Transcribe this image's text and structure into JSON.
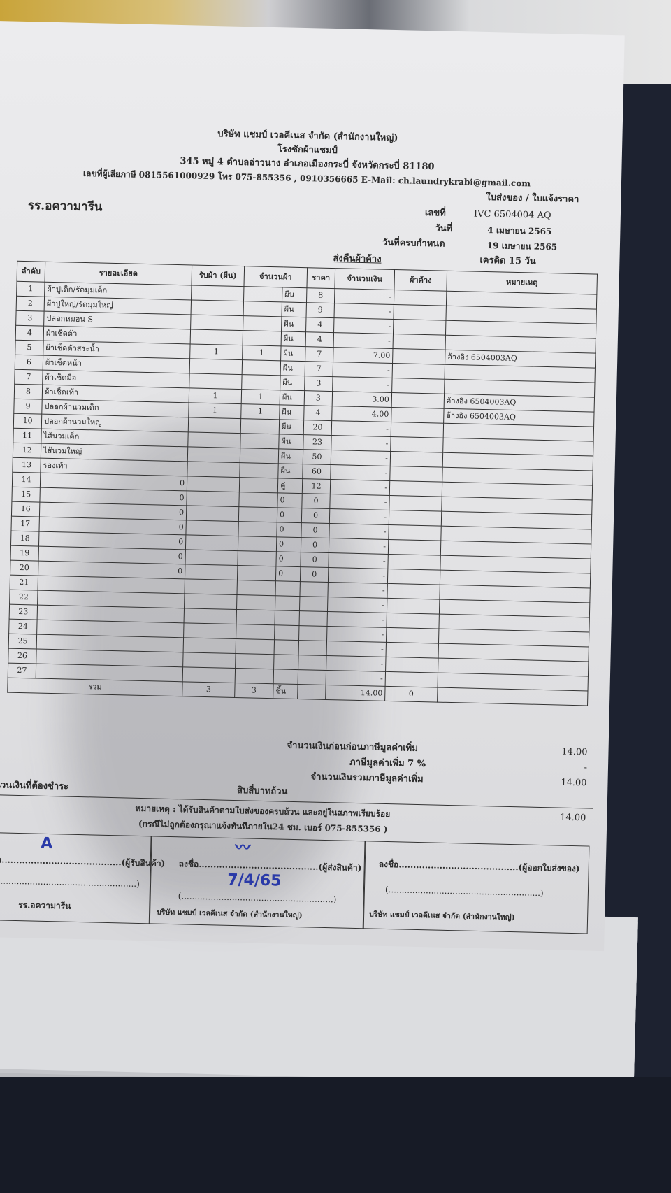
{
  "company": {
    "name": "บริษัท แชมป์ เวลคีเนส จำกัด (สำนักงานใหญ่)",
    "branch": "โรงซักผ้าแชมป์",
    "address": "345 หมู่ 4 ตำบลอ่าวนาง อำเภอเมืองกระบี่ จังหวัดกระบี่ 81180",
    "contact": "เลขที่ผู้เสียภาษี 0815561000929 โทร 075-855356 , 0910356665 E-Mail: ch.laundrykrabi@gmail.com"
  },
  "doc": {
    "type": "ใบส่งของ / ใบแจ้งราคา",
    "no_label": "เลขที่",
    "no": "IVC 6504004 AQ",
    "date_label": "วันที่",
    "date": "4 เมษายน 2565",
    "due_label": "วันที่ครบกำหนด",
    "due": "19 เมษายน 2565",
    "credit": "เครดิต 15 วัน",
    "section": "ส่งคืนผ้าค้าง"
  },
  "customer": "รร.อความารีน",
  "table": {
    "headers": [
      "ลำดับ",
      "รายละเอียด",
      "รับผ้า (ผืน)",
      "จำนวนผ้า",
      "ราคา",
      "จำนวนเงิน",
      "ผ้าค้าง",
      "หมายเหตุ"
    ],
    "rows": [
      [
        "1",
        "ผ้าปูเด็ก/รัดมุมเด็ก",
        "",
        "",
        "ผืน",
        "8",
        "-",
        "",
        ""
      ],
      [
        "2",
        "ผ้าปูใหญ่/รัดมุมใหญ่",
        "",
        "",
        "ผืน",
        "9",
        "-",
        "",
        ""
      ],
      [
        "3",
        "ปลอกหมอน S",
        "",
        "",
        "ผืน",
        "4",
        "-",
        "",
        ""
      ],
      [
        "4",
        "ผ้าเช็ดตัว",
        "",
        "",
        "ผืน",
        "4",
        "-",
        "",
        ""
      ],
      [
        "5",
        "ผ้าเช็ดตัวสระน้ำ",
        "1",
        "1",
        "ผืน",
        "7",
        "7.00",
        "",
        "อ้างอิง   6504003AQ"
      ],
      [
        "6",
        "ผ้าเช็ดหน้า",
        "",
        "",
        "ผืน",
        "7",
        "-",
        "",
        ""
      ],
      [
        "7",
        "ผ้าเช็ดมือ",
        "",
        "",
        "ผืน",
        "3",
        "-",
        "",
        ""
      ],
      [
        "8",
        "ผ้าเช็ดเท้า",
        "1",
        "1",
        "ผืน",
        "3",
        "3.00",
        "",
        "อ้างอิง   6504003AQ"
      ],
      [
        "9",
        "ปลอกผ้านวมเด็ก",
        "1",
        "1",
        "ผืน",
        "4",
        "4.00",
        "",
        "อ้างอิง   6504003AQ"
      ],
      [
        "10",
        "ปลอกผ้านวมใหญ่",
        "",
        "",
        "ผืน",
        "20",
        "-",
        "",
        ""
      ],
      [
        "11",
        "ไส้นวมเด็ก",
        "",
        "",
        "ผืน",
        "23",
        "-",
        "",
        ""
      ],
      [
        "12",
        "ไส้นวมใหญ่",
        "",
        "",
        "ผืน",
        "50",
        "-",
        "",
        ""
      ],
      [
        "13",
        "รองเท้า",
        "",
        "",
        "ผืน",
        "60",
        "-",
        "",
        ""
      ],
      [
        "14",
        "0",
        "",
        "",
        "คู่",
        "12",
        "-",
        "",
        ""
      ],
      [
        "15",
        "0",
        "",
        "",
        "0",
        "0",
        "-",
        "",
        ""
      ],
      [
        "16",
        "0",
        "",
        "",
        "0",
        "0",
        "-",
        "",
        ""
      ],
      [
        "17",
        "0",
        "",
        "",
        "0",
        "0",
        "-",
        "",
        ""
      ],
      [
        "18",
        "0",
        "",
        "",
        "0",
        "0",
        "-",
        "",
        ""
      ],
      [
        "19",
        "0",
        "",
        "",
        "0",
        "0",
        "-",
        "",
        ""
      ],
      [
        "20",
        "0",
        "",
        "",
        "0",
        "0",
        "-",
        "",
        ""
      ],
      [
        "21",
        "",
        "",
        "",
        "",
        "",
        "-",
        "",
        ""
      ],
      [
        "22",
        "",
        "",
        "",
        "",
        "",
        "-",
        "",
        ""
      ],
      [
        "23",
        "",
        "",
        "",
        "",
        "",
        "-",
        "",
        ""
      ],
      [
        "24",
        "",
        "",
        "",
        "",
        "",
        "-",
        "",
        ""
      ],
      [
        "25",
        "",
        "",
        "",
        "",
        "",
        "-",
        "",
        ""
      ],
      [
        "26",
        "",
        "",
        "",
        "",
        "",
        "-",
        "",
        ""
      ],
      [
        "27",
        "",
        "",
        "",
        "",
        "",
        "-",
        "",
        ""
      ]
    ],
    "total": {
      "label": "รวม",
      "received": "3",
      "qty": "3",
      "unit": "ชิ้น",
      "amount": "14.00",
      "pending": "0"
    }
  },
  "summary": {
    "before_vat_label": "จำนวนเงินก่อนก่อนภาษีมูลค่าเพิ่ม",
    "before_vat": "14.00",
    "vat_label": "ภาษีมูลค่าเพิ่ม 7 %",
    "vat": "-",
    "with_vat_label": "จำนวนเงินรวมภาษีมูลค่าเพิ่ม",
    "with_vat": "14.00",
    "payable_label": "จำนวนเงินที่ต้องชำระ",
    "payable_words": "สิบสี่บาทถ้วน",
    "payable": "14.00"
  },
  "note": {
    "line1": "หมายเหตุ : ได้รับสินค้าตามใบส่งของครบถ้วน และอยู่ในสภาพเรียบร้อย",
    "line2": "(กรณีไม่ถูกต้องกรุณาแจ้งทันทีภายใน24 ชม. เบอร์ 075-855356 )"
  },
  "signatures": [
    {
      "sign": "ลงชื่อ.........................................(ผู้รับสินค้า)",
      "paren": "(.........................................................)",
      "org": "รร.อความารีน",
      "handwritten": "A"
    },
    {
      "sign": "ลงชื่อ.........................................(ผู้ส่งสินค้า)",
      "paren": "(.........................................................)",
      "org": "บริษัท แชมป์ เวลคีเนส จำกัด (สำนักงานใหญ่)",
      "handwritten": "7/4/65"
    },
    {
      "sign": "ลงชื่อ.........................................(ผู้ออกใบส่งของ)",
      "paren": "(.........................................................)",
      "org": "บริษัท แชมป์ เวลคีเนส จำกัด (สำนักงานใหญ่)"
    }
  ]
}
